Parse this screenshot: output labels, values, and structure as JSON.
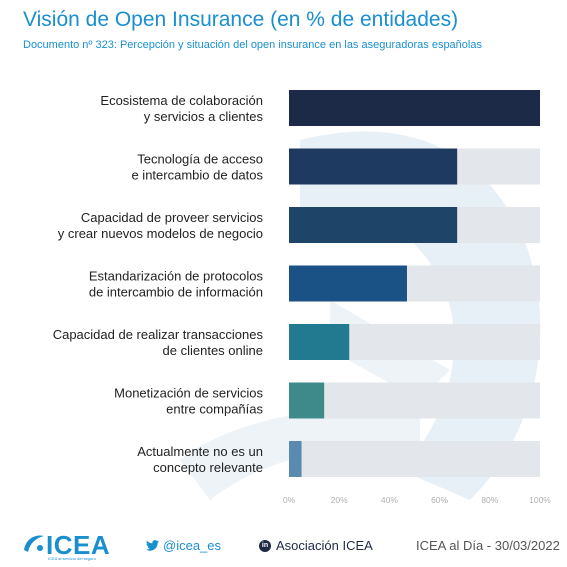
{
  "header": {
    "title": "Visión de Open Insurance (en % de entidades)",
    "subtitle": "Documento nº 323: Percepción y situación del open insurance en las aseguradoras españolas"
  },
  "chart_data": {
    "type": "bar",
    "orientation": "horizontal",
    "categories": [
      [
        "Ecosistema de colaboración",
        "y servicios a clientes"
      ],
      [
        "Tecnología de acceso",
        "e intercambio de datos"
      ],
      [
        "Capacidad de proveer servicios",
        "y crear nuevos modelos de negocio"
      ],
      [
        "Estandarización de protocolos",
        "de intercambio de información"
      ],
      [
        "Capacidad de realizar transacciones",
        "de clientes online"
      ],
      [
        "Monetización de servicios",
        "entre compañías"
      ],
      [
        "Actualmente no es un",
        "concepto relevante"
      ]
    ],
    "values": [
      100,
      67,
      67,
      47,
      24,
      14,
      5
    ],
    "colors": [
      "#1c2a48",
      "#1e3a60",
      "#1e4468",
      "#1b5286",
      "#217a90",
      "#3e8a8a",
      "#5a8ab0"
    ],
    "track_color": "#e3e6ea",
    "xlim": [
      0,
      100
    ],
    "ticks": [
      "0%",
      "20%",
      "40%",
      "60%",
      "80%",
      "100%"
    ],
    "tick_values": [
      0,
      20,
      40,
      60,
      80,
      100
    ],
    "grid": false
  },
  "footer": {
    "logo_text": "ICEA",
    "logo_tagline": "ICEA al servicio del seguro",
    "twitter": "@icea_es",
    "linkedin": "Asociación ICEA",
    "date": "ICEA al Día - 30/03/2022",
    "brand_color": "#1a8fd0"
  }
}
